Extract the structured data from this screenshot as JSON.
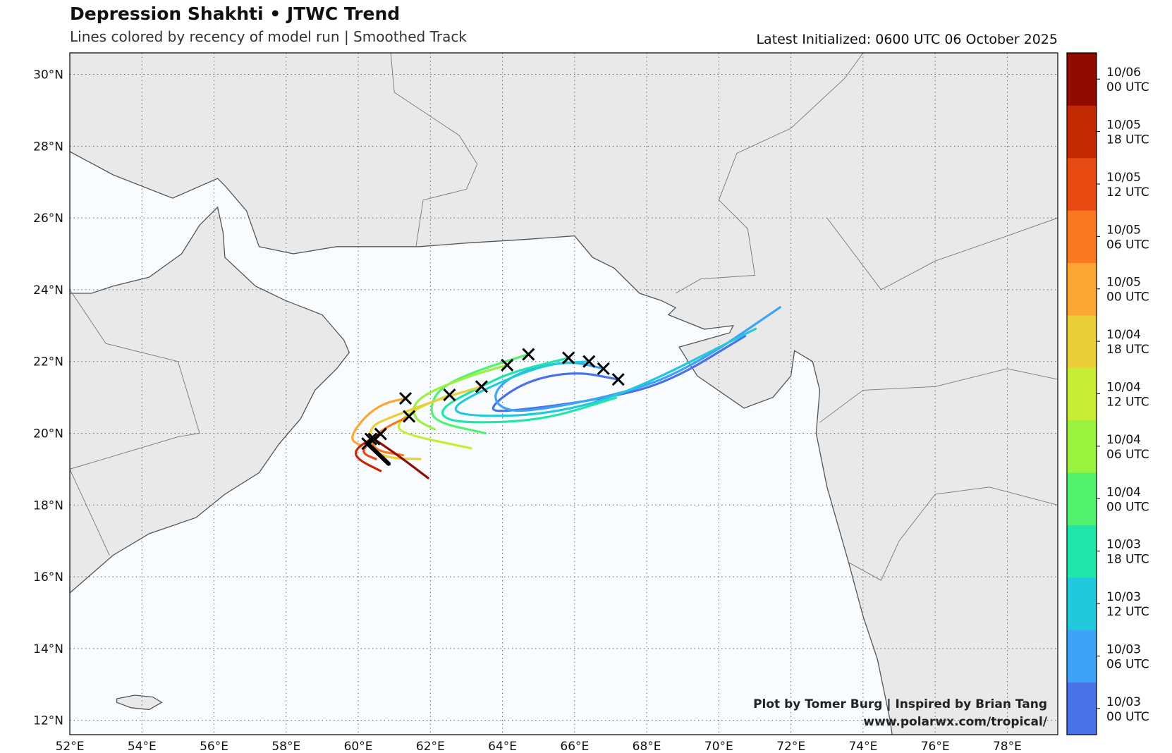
{
  "header": {
    "title": "Depression Shakhti • JTWC Trend",
    "subtitle": "Lines colored by recency of model run | Smoothed Track",
    "latest": "Latest Initialized: 0600 UTC 06 October 2025"
  },
  "credits": {
    "line1": "Plot by Tomer Burg | Inspired by Brian Tang",
    "line2": "www.polarwx.com/tropical/"
  },
  "colors": {
    "land": "#e9e9e9",
    "ocean": "#f8fcff",
    "coast": "#555555",
    "latest": "#000000",
    "marker": "#000000"
  },
  "chart_data": {
    "type": "line",
    "title": "Depression Shakhti • JTWC Trend",
    "xlim": [
      52,
      79.4
    ],
    "ylim": [
      11.6,
      30.6
    ],
    "grid": true,
    "xticks": [
      "52°E",
      "54°E",
      "56°E",
      "58°E",
      "60°E",
      "62°E",
      "64°E",
      "66°E",
      "68°E",
      "70°E",
      "72°E",
      "74°E",
      "76°E",
      "78°E"
    ],
    "xtick_values": [
      52,
      54,
      56,
      58,
      60,
      62,
      64,
      66,
      68,
      70,
      72,
      74,
      76,
      78
    ],
    "yticks": [
      "12°N",
      "14°N",
      "16°N",
      "18°N",
      "20°N",
      "22°N",
      "24°N",
      "26°N",
      "28°N",
      "30°N"
    ],
    "ytick_values": [
      12,
      14,
      16,
      18,
      20,
      22,
      24,
      26,
      28,
      30
    ],
    "colorbar": [
      {
        "line1": "10/03",
        "line2": "00 UTC",
        "color": "#4a72e8"
      },
      {
        "line1": "10/03",
        "line2": "06 UTC",
        "color": "#3ea2f7"
      },
      {
        "line1": "10/03",
        "line2": "12 UTC",
        "color": "#22c8dc"
      },
      {
        "line1": "10/03",
        "line2": "18 UTC",
        "color": "#20e6ac"
      },
      {
        "line1": "10/04",
        "line2": "00 UTC",
        "color": "#52f26e"
      },
      {
        "line1": "10/04",
        "line2": "06 UTC",
        "color": "#9af23e"
      },
      {
        "line1": "10/04",
        "line2": "12 UTC",
        "color": "#c8ec34"
      },
      {
        "line1": "10/04",
        "line2": "18 UTC",
        "color": "#eace3a"
      },
      {
        "line1": "10/05",
        "line2": "00 UTC",
        "color": "#fca634"
      },
      {
        "line1": "10/05",
        "line2": "06 UTC",
        "color": "#f87822"
      },
      {
        "line1": "10/05",
        "line2": "12 UTC",
        "color": "#e64a10"
      },
      {
        "line1": "10/05",
        "line2": "18 UTC",
        "color": "#c22a04"
      },
      {
        "line1": "10/06",
        "line2": "00 UTC",
        "color": "#900c00"
      }
    ],
    "series": [
      {
        "name": "10/03 00 UTC",
        "color": "#4a72e8",
        "points": [
          [
            67.21,
            21.5
          ],
          [
            66.0,
            21.73
          ],
          [
            64.59,
            21.44
          ],
          [
            63.53,
            20.64
          ],
          [
            64.24,
            20.61
          ],
          [
            66.89,
            20.97
          ],
          [
            68.65,
            21.44
          ],
          [
            70.73,
            22.71
          ]
        ]
      },
      {
        "name": "10/03 06 UTC",
        "color": "#3ea2f7",
        "points": [
          [
            66.8,
            21.8
          ],
          [
            65.83,
            22.03
          ],
          [
            64.42,
            21.7
          ],
          [
            63.75,
            21.17
          ],
          [
            63.89,
            20.71
          ],
          [
            64.68,
            20.57
          ],
          [
            67.77,
            21.2
          ],
          [
            69.54,
            22.03
          ],
          [
            71.7,
            23.51
          ]
        ]
      },
      {
        "name": "10/03 12 UTC",
        "color": "#22c8dc",
        "points": [
          [
            66.4,
            22.0
          ],
          [
            65.12,
            21.93
          ],
          [
            63.09,
            21.04
          ],
          [
            62.56,
            20.64
          ],
          [
            63.18,
            20.47
          ],
          [
            65.12,
            20.51
          ],
          [
            67.33,
            21.04
          ],
          [
            71.02,
            22.91
          ]
        ]
      },
      {
        "name": "10/03 18 UTC",
        "color": "#20e6ac",
        "points": [
          [
            65.83,
            22.1
          ],
          [
            64.24,
            21.7
          ],
          [
            63.4,
            21.3
          ],
          [
            62.38,
            20.77
          ],
          [
            62.3,
            20.44
          ],
          [
            63.0,
            20.28
          ],
          [
            65.12,
            20.36
          ],
          [
            67.15,
            20.99
          ]
        ]
      },
      {
        "name": "10/04 00 UTC",
        "color": "#52f26e",
        "points": [
          [
            64.72,
            22.2
          ],
          [
            63.36,
            21.77
          ],
          [
            62.3,
            21.3
          ],
          [
            61.99,
            20.77
          ],
          [
            62.12,
            20.31
          ],
          [
            63.53,
            20.0
          ]
        ]
      },
      {
        "name": "10/04 06 UTC",
        "color": "#9af23e",
        "points": [
          [
            64.13,
            21.9
          ],
          [
            63.09,
            21.6
          ],
          [
            61.94,
            21.14
          ],
          [
            61.5,
            20.77
          ],
          [
            61.59,
            20.37
          ],
          [
            62.12,
            20.11
          ]
        ]
      },
      {
        "name": "10/04 12 UTC",
        "color": "#c8ec34",
        "points": [
          [
            62.53,
            21.07
          ],
          [
            61.5,
            20.64
          ],
          [
            61.06,
            20.24
          ],
          [
            61.24,
            19.98
          ],
          [
            63.13,
            19.58
          ]
        ]
      },
      {
        "name": "10/04 18 UTC",
        "color": "#eace3a",
        "points": [
          [
            63.42,
            21.3
          ],
          [
            62.3,
            20.97
          ],
          [
            60.88,
            20.44
          ],
          [
            60.31,
            20.18
          ],
          [
            60.35,
            19.58
          ],
          [
            60.79,
            19.31
          ],
          [
            61.72,
            19.28
          ]
        ]
      },
      {
        "name": "10/05 00 UTC",
        "color": "#fca634",
        "points": [
          [
            61.31,
            20.97
          ],
          [
            60.71,
            20.84
          ],
          [
            60.18,
            20.47
          ],
          [
            59.74,
            19.84
          ],
          [
            60.09,
            19.65
          ]
        ]
      },
      {
        "name": "10/05 06 UTC",
        "color": "#f87822",
        "points": [
          [
            61.41,
            20.47
          ],
          [
            60.79,
            20.18
          ],
          [
            60.35,
            19.84
          ],
          [
            60.49,
            19.51
          ],
          [
            61.24,
            19.39
          ]
        ]
      },
      {
        "name": "10/05 12 UTC",
        "color": "#e64a10",
        "points": [
          [
            60.62,
            19.98
          ],
          [
            60.26,
            19.71
          ],
          [
            60.09,
            19.45
          ],
          [
            60.49,
            19.28
          ]
        ]
      },
      {
        "name": "10/05 18 UTC",
        "color": "#c22a04",
        "points": [
          [
            60.35,
            19.84
          ],
          [
            59.91,
            19.55
          ],
          [
            59.96,
            19.28
          ],
          [
            60.62,
            18.95
          ]
        ]
      },
      {
        "name": "10/06 00 UTC",
        "color": "#900c00",
        "points": [
          [
            60.44,
            19.84
          ],
          [
            61.15,
            19.35
          ],
          [
            61.94,
            18.75
          ]
        ]
      },
      {
        "name": "latest",
        "color": "#000000",
        "points": [
          [
            60.26,
            19.71
          ],
          [
            60.84,
            19.15
          ]
        ]
      }
    ]
  }
}
